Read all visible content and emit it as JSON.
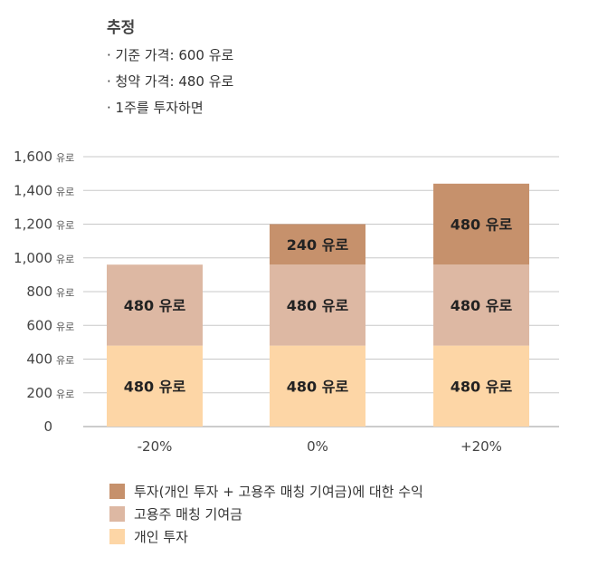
{
  "header": {
    "title": "추정",
    "lines": [
      "기준 가격: 600 유로",
      "청약 가격: 480 유로",
      "1주를 투자하면"
    ]
  },
  "chart_data": {
    "type": "bar",
    "stacked": true,
    "categories": [
      "-20%",
      "0%",
      "+20%"
    ],
    "unit": "유로",
    "ylim": [
      0,
      1600
    ],
    "yticks": [
      0,
      200,
      400,
      600,
      800,
      1000,
      1200,
      1400,
      1600
    ],
    "ytick_labels": [
      "0",
      "200",
      "400",
      "600",
      "800",
      "1,000",
      "1,200",
      "1,400",
      "1,600"
    ],
    "series": [
      {
        "name": "개인 투자",
        "color": "#FDD6A6",
        "values": [
          480,
          480,
          480
        ],
        "labels": [
          "480 유로",
          "480 유로",
          "480 유로"
        ]
      },
      {
        "name": "고용주 매칭 기여금",
        "color": "#DDB8A3",
        "values": [
          480,
          480,
          480
        ],
        "labels": [
          "480 유로",
          "480 유로",
          "480 유로"
        ]
      },
      {
        "name": "투자(개인 투자 + 고용주 매칭 기여금)에 대한 수익",
        "color": "#C6916C",
        "values": [
          0,
          240,
          480
        ],
        "labels": [
          "",
          "240 유로",
          "480 유로"
        ]
      }
    ],
    "legend": "bottom-left",
    "grid": true
  }
}
